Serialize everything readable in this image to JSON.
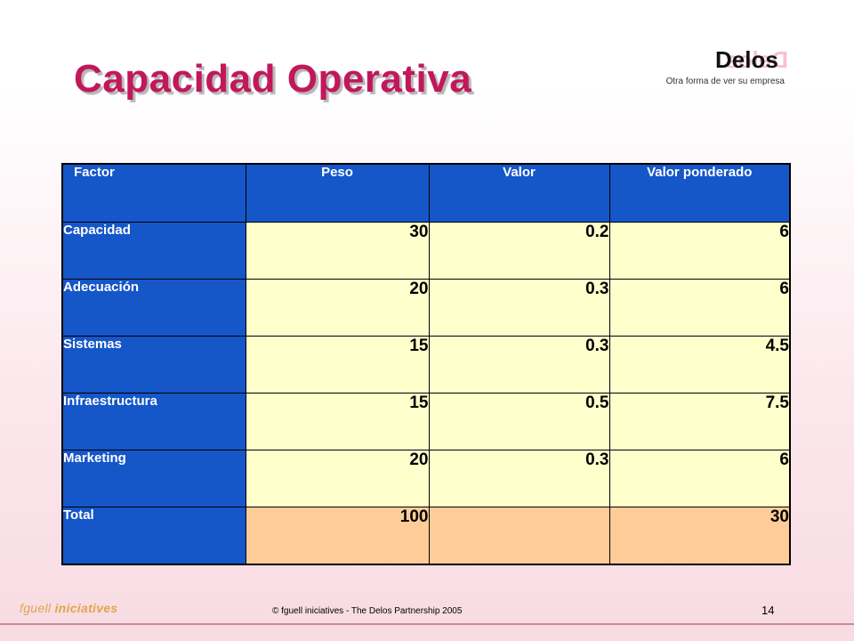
{
  "slide": {
    "title": "Capacidad Operativa",
    "number": "14"
  },
  "logo": {
    "mirrored_text": "Delos",
    "brand": "Delos",
    "tagline": "Otra forma de ver su empresa"
  },
  "table": {
    "headers": [
      "Factor",
      "Peso",
      "Valor",
      "Valor ponderado"
    ],
    "rows": [
      {
        "factor": "Capacidad",
        "peso": "30",
        "valor": "0.2",
        "ponderado": "6"
      },
      {
        "factor": "Adecuación",
        "peso": "20",
        "valor": "0.3",
        "ponderado": "6"
      },
      {
        "factor": "Sistemas",
        "peso": "15",
        "valor": "0.3",
        "ponderado": "4.5"
      },
      {
        "factor": "Infraestructura",
        "peso": "15",
        "valor": "0.5",
        "ponderado": "7.5"
      },
      {
        "factor": "Marketing",
        "peso": "20",
        "valor": "0.3",
        "ponderado": "6"
      }
    ],
    "total": {
      "factor": "Total",
      "peso": "100",
      "valor": "",
      "ponderado": "30"
    }
  },
  "footer": {
    "brand_word1": "fguell",
    "brand_word2": "iniciatives",
    "copyright": "© fguell iniciatives - The Delos Partnership 2005"
  },
  "colors": {
    "title": "#c2185b",
    "header_cell": "#1556c8",
    "value_cell": "#ffffcc",
    "total_cell": "#ffcc99"
  }
}
